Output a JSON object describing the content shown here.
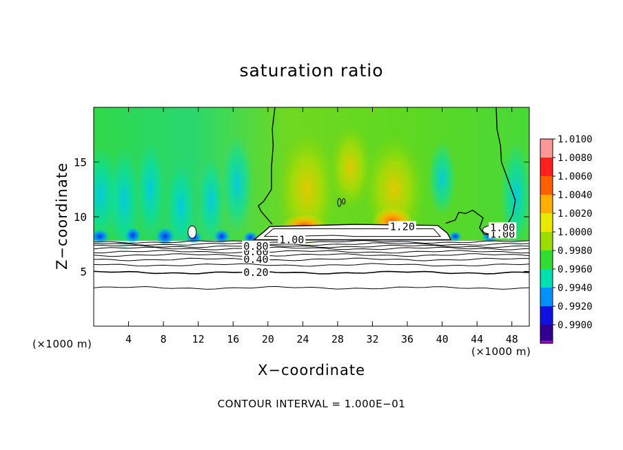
{
  "chart_data": {
    "type": "heatmap",
    "title": "saturation ratio",
    "xlabel": "X−coordinate",
    "ylabel": "Z−coordinate",
    "x_unit": "(×1000 m)",
    "xlim": [
      0,
      50
    ],
    "ylim": [
      0,
      20
    ],
    "x_ticks": [
      4,
      8,
      12,
      16,
      20,
      24,
      28,
      32,
      36,
      40,
      44,
      48
    ],
    "y_ticks": [
      5,
      10,
      15
    ],
    "footer": "CONTOUR INTERVAL = 1.000E−01",
    "colorbar": {
      "levels": [
        "1.0100",
        "1.0080",
        "1.0060",
        "1.0040",
        "1.0020",
        "1.0000",
        "0.9980",
        "0.9960",
        "0.9940",
        "0.9920",
        "0.9900"
      ],
      "colors": [
        "#ff9999",
        "#ff2020",
        "#ff6000",
        "#ffb000",
        "#e8e800",
        "#9cdc00",
        "#30dc30",
        "#00e0b0",
        "#0090ff",
        "#1010e0",
        "#300090",
        "#a000c0"
      ]
    },
    "contour_labels": [
      {
        "text": "0.20",
        "x": 17.2,
        "z": 4.9
      },
      {
        "text": "0.40",
        "x": 17.2,
        "z": 6.1
      },
      {
        "text": "0.60",
        "x": 17.2,
        "z": 6.8
      },
      {
        "text": "0.80",
        "x": 17.2,
        "z": 7.3
      },
      {
        "text": "1.00",
        "x": 21.3,
        "z": 7.9
      },
      {
        "text": "1.20",
        "x": 34.0,
        "z": 9.1
      },
      {
        "text": "1.00",
        "x": 45.5,
        "z": 8.4
      },
      {
        "text": "1.00",
        "x": 45.5,
        "z": 9.0
      }
    ]
  }
}
